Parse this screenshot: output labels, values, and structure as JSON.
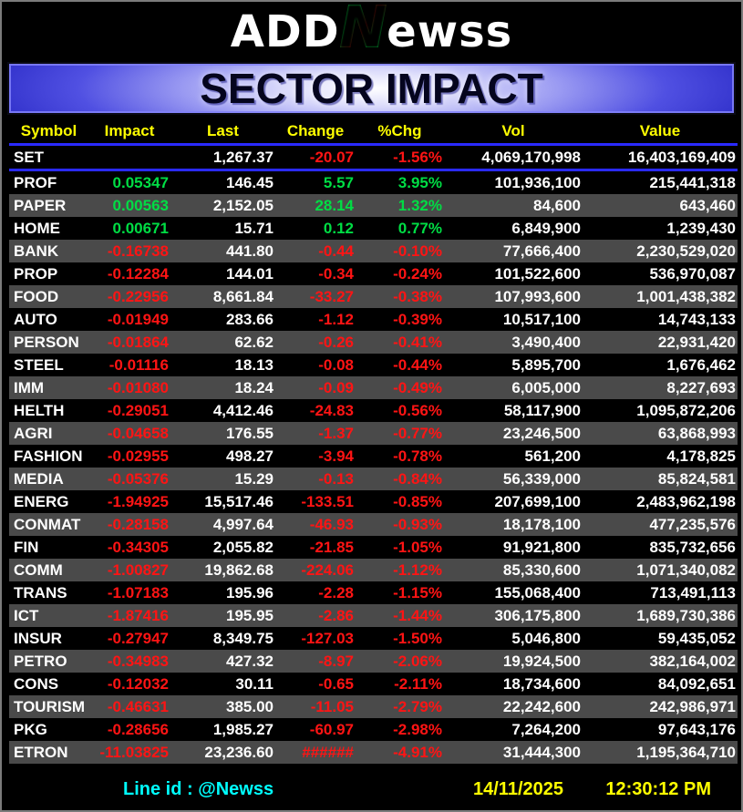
{
  "logo": {
    "part1": "ADD",
    "accent": "N",
    "part2": "ewss"
  },
  "banner": {
    "title": "SECTOR IMPACT"
  },
  "table": {
    "columns": [
      {
        "label": "Symbol"
      },
      {
        "label": "Impact"
      },
      {
        "label": "Last"
      },
      {
        "label": "Change"
      },
      {
        "label": "%Chg"
      },
      {
        "label": "Vol"
      },
      {
        "label": "Value"
      }
    ],
    "set_row": {
      "symbol": "SET",
      "impact": "",
      "last": "1,267.37",
      "change": "-20.07",
      "pct": "-1.56%",
      "vol": "4,069,170,998",
      "value": "16,403,169,409",
      "dir": "down"
    },
    "rows": [
      {
        "symbol": "PROF",
        "impact": "0.05347",
        "last": "146.45",
        "change": "5.57",
        "pct": "3.95%",
        "vol": "101,936,100",
        "value": "215,441,318",
        "dir": "up"
      },
      {
        "symbol": "PAPER",
        "impact": "0.00563",
        "last": "2,152.05",
        "change": "28.14",
        "pct": "1.32%",
        "vol": "84,600",
        "value": "643,460",
        "dir": "up"
      },
      {
        "symbol": "HOME",
        "impact": "0.00671",
        "last": "15.71",
        "change": "0.12",
        "pct": "0.77%",
        "vol": "6,849,900",
        "value": "1,239,430",
        "dir": "up"
      },
      {
        "symbol": "BANK",
        "impact": "-0.16738",
        "last": "441.80",
        "change": "-0.44",
        "pct": "-0.10%",
        "vol": "77,666,400",
        "value": "2,230,529,020",
        "dir": "down"
      },
      {
        "symbol": "PROP",
        "impact": "-0.12284",
        "last": "144.01",
        "change": "-0.34",
        "pct": "-0.24%",
        "vol": "101,522,600",
        "value": "536,970,087",
        "dir": "down"
      },
      {
        "symbol": "FOOD",
        "impact": "-0.22956",
        "last": "8,661.84",
        "change": "-33.27",
        "pct": "-0.38%",
        "vol": "107,993,600",
        "value": "1,001,438,382",
        "dir": "down"
      },
      {
        "symbol": "AUTO",
        "impact": "-0.01949",
        "last": "283.66",
        "change": "-1.12",
        "pct": "-0.39%",
        "vol": "10,517,100",
        "value": "14,743,133",
        "dir": "down"
      },
      {
        "symbol": "PERSON",
        "impact": "-0.01864",
        "last": "62.62",
        "change": "-0.26",
        "pct": "-0.41%",
        "vol": "3,490,400",
        "value": "22,931,420",
        "dir": "down"
      },
      {
        "symbol": "STEEL",
        "impact": "-0.01116",
        "last": "18.13",
        "change": "-0.08",
        "pct": "-0.44%",
        "vol": "5,895,700",
        "value": "1,676,462",
        "dir": "down"
      },
      {
        "symbol": "IMM",
        "impact": "-0.01080",
        "last": "18.24",
        "change": "-0.09",
        "pct": "-0.49%",
        "vol": "6,005,000",
        "value": "8,227,693",
        "dir": "down"
      },
      {
        "symbol": "HELTH",
        "impact": "-0.29051",
        "last": "4,412.46",
        "change": "-24.83",
        "pct": "-0.56%",
        "vol": "58,117,900",
        "value": "1,095,872,206",
        "dir": "down"
      },
      {
        "symbol": "AGRI",
        "impact": "-0.04658",
        "last": "176.55",
        "change": "-1.37",
        "pct": "-0.77%",
        "vol": "23,246,500",
        "value": "63,868,993",
        "dir": "down"
      },
      {
        "symbol": "FASHION",
        "impact": "-0.02955",
        "last": "498.27",
        "change": "-3.94",
        "pct": "-0.78%",
        "vol": "561,200",
        "value": "4,178,825",
        "dir": "down"
      },
      {
        "symbol": "MEDIA",
        "impact": "-0.05376",
        "last": "15.29",
        "change": "-0.13",
        "pct": "-0.84%",
        "vol": "56,339,000",
        "value": "85,824,581",
        "dir": "down"
      },
      {
        "symbol": "ENERG",
        "impact": "-1.94925",
        "last": "15,517.46",
        "change": "-133.51",
        "pct": "-0.85%",
        "vol": "207,699,100",
        "value": "2,483,962,198",
        "dir": "down"
      },
      {
        "symbol": "CONMAT",
        "impact": "-0.28158",
        "last": "4,997.64",
        "change": "-46.93",
        "pct": "-0.93%",
        "vol": "18,178,100",
        "value": "477,235,576",
        "dir": "down"
      },
      {
        "symbol": "FIN",
        "impact": "-0.34305",
        "last": "2,055.82",
        "change": "-21.85",
        "pct": "-1.05%",
        "vol": "91,921,800",
        "value": "835,732,656",
        "dir": "down"
      },
      {
        "symbol": "COMM",
        "impact": "-1.00827",
        "last": "19,862.68",
        "change": "-224.06",
        "pct": "-1.12%",
        "vol": "85,330,600",
        "value": "1,071,340,082",
        "dir": "down"
      },
      {
        "symbol": "TRANS",
        "impact": "-1.07183",
        "last": "195.96",
        "change": "-2.28",
        "pct": "-1.15%",
        "vol": "155,068,400",
        "value": "713,491,113",
        "dir": "down"
      },
      {
        "symbol": "ICT",
        "impact": "-1.87416",
        "last": "195.95",
        "change": "-2.86",
        "pct": "-1.44%",
        "vol": "306,175,800",
        "value": "1,689,730,386",
        "dir": "down"
      },
      {
        "symbol": "INSUR",
        "impact": "-0.27947",
        "last": "8,349.75",
        "change": "-127.03",
        "pct": "-1.50%",
        "vol": "5,046,800",
        "value": "59,435,052",
        "dir": "down"
      },
      {
        "symbol": "PETRO",
        "impact": "-0.34983",
        "last": "427.32",
        "change": "-8.97",
        "pct": "-2.06%",
        "vol": "19,924,500",
        "value": "382,164,002",
        "dir": "down"
      },
      {
        "symbol": "CONS",
        "impact": "-0.12032",
        "last": "30.11",
        "change": "-0.65",
        "pct": "-2.11%",
        "vol": "18,734,600",
        "value": "84,092,651",
        "dir": "down"
      },
      {
        "symbol": "TOURISM",
        "impact": "-0.46631",
        "last": "385.00",
        "change": "-11.05",
        "pct": "-2.79%",
        "vol": "22,242,600",
        "value": "242,986,971",
        "dir": "down"
      },
      {
        "symbol": "PKG",
        "impact": "-0.28656",
        "last": "1,985.27",
        "change": "-60.97",
        "pct": "-2.98%",
        "vol": "7,264,200",
        "value": "97,643,176",
        "dir": "down"
      },
      {
        "symbol": "ETRON",
        "impact": "-11.03825",
        "last": "23,236.60",
        "change": "######",
        "pct": "-4.91%",
        "vol": "31,444,300",
        "value": "1,195,364,710",
        "dir": "down"
      }
    ]
  },
  "footer": {
    "line_id": "Line id  : @Newss",
    "date": "14/11/2025",
    "time": "12:30:12 PM"
  },
  "colors": {
    "up_green": "#00DD44",
    "down_red": "#FF1414",
    "header_yellow": "#FFFF00",
    "line_cyan": "#00FFFF",
    "divider_blue": "#2A2AFF",
    "row_alt_gray": "#4A4A4A",
    "banner_blue": "#3434CD",
    "background": "#000000"
  }
}
